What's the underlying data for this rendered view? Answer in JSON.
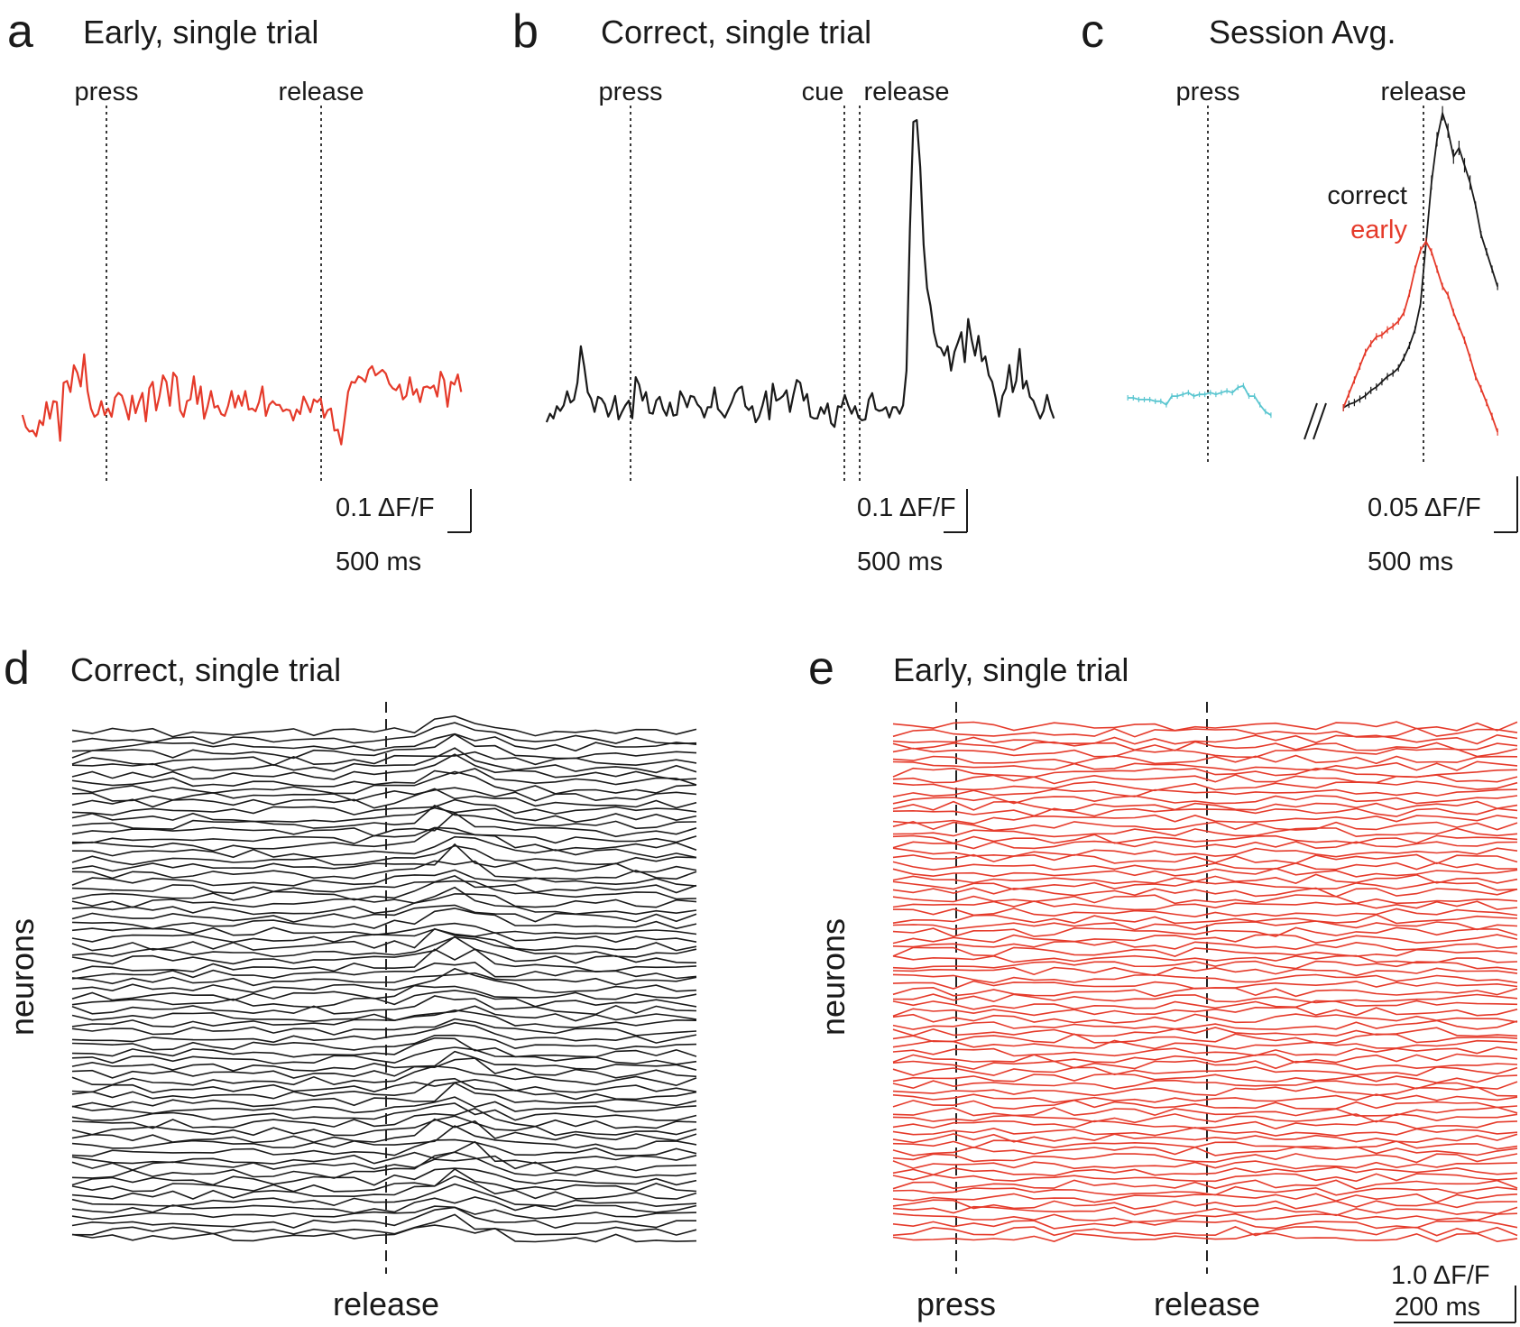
{
  "colors": {
    "early": "#e53a2a",
    "correct": "#1a1a1a",
    "press_avg": "#5bc6d0",
    "marker": "#222222"
  },
  "chart_data": [
    {
      "panel": "a",
      "type": "line",
      "title": "Early, single trial",
      "markers": [
        {
          "label": "press",
          "t_ms": 0
        },
        {
          "label": "release",
          "t_ms": 1180
        }
      ],
      "x_range_ms": [
        -490,
        2010
      ],
      "series": [
        {
          "name": "early trial",
          "color_key": "early",
          "t_start_ms": -490,
          "dt_ms": 20,
          "values": [
            0.0,
            -0.013,
            -0.018,
            -0.017,
            -0.023,
            -0.006,
            -0.011,
            0.014,
            -0.004,
            0.015,
            0.014,
            -0.028,
            0.035,
            0.037,
            0.025,
            0.054,
            0.046,
            0.031,
            0.066,
            0.026,
            0.007,
            -0.002,
            0.001,
            0.015,
            0.0,
            0.007,
            -0.002,
            0.019,
            0.024,
            0.021,
            0.009,
            -0.005,
            0.021,
            0.002,
            0.014,
            0.024,
            -0.007,
            0.029,
            0.036,
            0.005,
            0.021,
            0.043,
            0.036,
            0.01,
            0.046,
            0.041,
            0.005,
            -0.002,
            0.015,
            0.017,
            0.042,
            0.012,
            0.031,
            -0.004,
            0.009,
            0.026,
            0.008,
            0.01,
            0.001,
            -0.001,
            0.01,
            0.026,
            0.008,
            0.021,
            0.01,
            0.026,
            0.006,
            0.007,
            0.004,
            0.014,
            0.031,
            -0.001,
            0.011,
            0.015,
            0.011,
            0.011,
            0.004,
            0.006,
            0.005,
            -0.006,
            0.006,
            0.001,
            0.02,
            0.012,
            0.003,
            0.017,
            0.014,
            0.018,
            -0.003,
            0.005,
            0.007,
            -0.017,
            -0.016,
            -0.032,
            -0.004,
            0.025,
            0.036,
            0.035,
            0.042,
            0.04,
            0.036,
            0.049,
            0.053,
            0.043,
            0.046,
            0.049,
            0.045,
            0.034,
            0.029,
            0.027,
            0.033,
            0.017,
            0.021,
            0.041,
            0.022,
            0.028,
            0.014,
            0.03,
            0.031,
            0.029,
            0.032,
            0.02,
            0.047,
            0.038,
            0.009,
            0.036,
            0.033,
            0.044,
            0.025
          ]
        }
      ],
      "scale_bar": {
        "y_label": "0.1 ΔF/F",
        "y_value": 0.1,
        "x_label": "500 ms",
        "x_value_ms": 500
      }
    },
    {
      "panel": "b",
      "type": "line",
      "title": "Correct, single trial",
      "markers": [
        {
          "label": "press",
          "t_ms": 0
        },
        {
          "label": "cue",
          "t_ms": 1170
        },
        {
          "label": "release",
          "t_ms": 1250
        }
      ],
      "x_range_ms": [
        -490,
        1970
      ],
      "series": [
        {
          "name": "correct trial",
          "color_key": "correct",
          "t_start_ms": -490,
          "dt_ms": 20,
          "values": [
            0.0,
            0.009,
            0.004,
            0.017,
            0.012,
            0.018,
            0.033,
            0.021,
            0.024,
            0.042,
            0.081,
            0.059,
            0.032,
            0.025,
            0.011,
            0.027,
            0.025,
            0.019,
            0.006,
            0.014,
            0.028,
            0.003,
            0.011,
            0.018,
            0.023,
            0.004,
            0.048,
            0.04,
            0.023,
            0.032,
            0.01,
            0.009,
            0.023,
            0.027,
            0.014,
            0.007,
            0.021,
            0.007,
            0.008,
            0.033,
            0.026,
            0.016,
            0.028,
            0.027,
            0.019,
            0.015,
            0.005,
            0.016,
            0.016,
            0.037,
            0.014,
            0.01,
            0.005,
            0.013,
            0.021,
            0.031,
            0.036,
            0.038,
            0.017,
            0.013,
            0.017,
            0.0,
            0.006,
            0.018,
            0.033,
            0.003,
            0.041,
            0.023,
            0.025,
            0.028,
            0.034,
            0.011,
            0.029,
            0.045,
            0.042,
            0.023,
            0.03,
            0.006,
            0.004,
            0.004,
            0.016,
            0.009,
            0.02,
            -0.001,
            -0.005,
            0.017,
            0.016,
            0.029,
            0.018,
            0.009,
            0.017,
            0.005,
            0.002,
            0.003,
            0.024,
            0.031,
            0.014,
            0.012,
            0.013,
            0.016,
            0.005,
            0.016,
            0.016,
            0.009,
            0.018,
            0.055,
            0.206,
            0.32,
            0.322,
            0.272,
            0.189,
            0.143,
            0.124,
            0.096,
            0.081,
            0.079,
            0.071,
            0.081,
            0.055,
            0.075,
            0.085,
            0.096,
            0.064,
            0.11,
            0.088,
            0.071,
            0.092,
            0.065,
            0.07,
            0.05,
            0.043,
            0.026,
            0.006,
            0.028,
            0.036,
            0.061,
            0.032,
            0.044,
            0.078,
            0.036,
            0.044,
            0.027,
            0.023,
            0.013,
            0.004,
            0.012,
            0.029,
            0.014,
            0.004
          ]
        }
      ],
      "scale_bar": {
        "y_label": "0.1 ΔF/F",
        "y_value": 0.1,
        "x_label": "500 ms",
        "x_value_ms": 500
      }
    },
    {
      "panel": "c",
      "type": "line",
      "title": "Session Avg.",
      "markers": [
        {
          "label": "press",
          "t_ms": 0
        },
        {
          "label": "release",
          "t_ms": 0
        }
      ],
      "axis_break": true,
      "legend": [
        "correct",
        "early"
      ],
      "series": [
        {
          "name": "press",
          "color_key": "press_avg",
          "aligned_to": "press",
          "t_start_ms": -480,
          "dt_ms": 33,
          "values": [
            0.0,
            0.0,
            -0.001,
            -0.001,
            -0.001,
            -0.002,
            -0.002,
            -0.004,
            0.001,
            0.001,
            0.002,
            0.003,
            0.001,
            0.002,
            0.002,
            0.003,
            0.002,
            0.003,
            0.004,
            0.003,
            0.006,
            0.007,
            0.001,
            0.001,
            -0.004,
            -0.008,
            -0.01
          ]
        },
        {
          "name": "correct",
          "color_key": "correct",
          "aligned_to": "release",
          "t_start_ms": -480,
          "dt_ms": 33,
          "values": [
            0.0,
            0.002,
            0.003,
            0.005,
            0.007,
            0.01,
            0.012,
            0.015,
            0.018,
            0.02,
            0.023,
            0.029,
            0.036,
            0.045,
            0.06,
            0.095,
            0.13,
            0.155,
            0.17,
            0.16,
            0.145,
            0.15,
            0.14,
            0.13,
            0.117,
            0.1,
            0.09,
            0.08,
            0.07
          ]
        },
        {
          "name": "early",
          "color_key": "early",
          "aligned_to": "release",
          "t_start_ms": -480,
          "dt_ms": 33,
          "values": [
            0.0,
            0.008,
            0.016,
            0.024,
            0.032,
            0.037,
            0.041,
            0.042,
            0.045,
            0.047,
            0.05,
            0.055,
            0.066,
            0.08,
            0.091,
            0.096,
            0.09,
            0.08,
            0.07,
            0.065,
            0.055,
            0.047,
            0.039,
            0.029,
            0.018,
            0.011,
            0.003,
            -0.005,
            -0.014
          ]
        }
      ],
      "scale_bar": {
        "y_label": "0.05 ΔF/F",
        "y_value": 0.05,
        "x_label": "500 ms",
        "x_value_ms": 500
      }
    },
    {
      "panel": "d",
      "type": "line",
      "title": "Correct, single trial",
      "ylabel": "neurons",
      "color_key": "correct",
      "n_neurons": 72,
      "n_timepoints": 32,
      "response_peak_index": 19,
      "markers": [
        {
          "label": "release",
          "t_index": 16
        }
      ]
    },
    {
      "panel": "e",
      "type": "line",
      "title": "Early, single trial",
      "ylabel": "neurons",
      "color_key": "early",
      "n_neurons": 78,
      "n_timepoints": 32,
      "markers": [
        {
          "label": "press",
          "t_index": 3
        },
        {
          "label": "release",
          "t_index": 16
        }
      ],
      "scale_bar": {
        "y_label": "1.0 ΔF/F",
        "y_value": 1.0,
        "x_label": "200 ms",
        "x_value_ms": 200
      }
    }
  ]
}
